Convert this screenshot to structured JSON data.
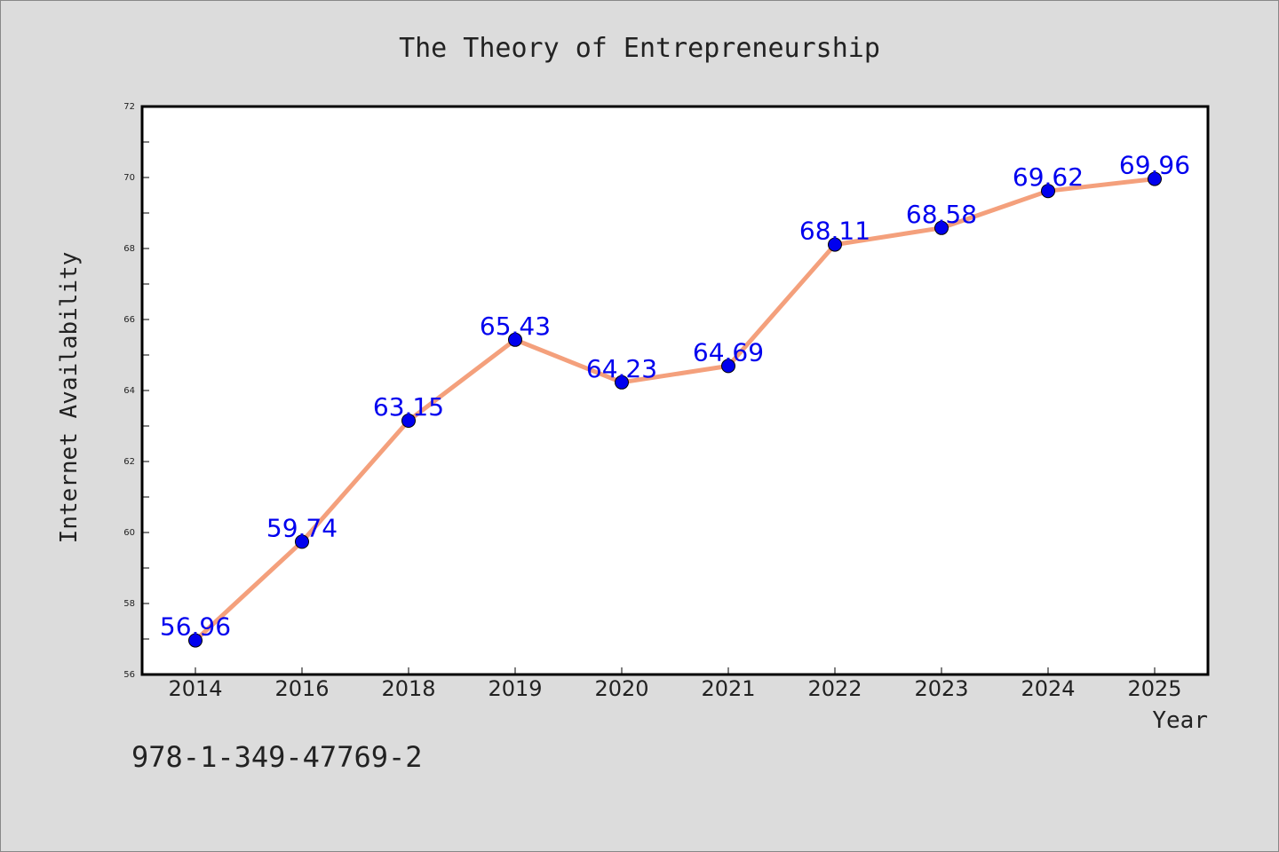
{
  "chart_data": {
    "type": "line",
    "title": "The Theory of Entrepreneurship",
    "xlabel": "Year",
    "ylabel": "Internet Availability",
    "categories": [
      "2014",
      "2016",
      "2018",
      "2019",
      "2020",
      "2021",
      "2022",
      "2023",
      "2024",
      "2025"
    ],
    "series": [
      {
        "values": [
          56.96,
          59.74,
          63.15,
          65.43,
          64.23,
          64.69,
          68.11,
          68.58,
          69.62,
          69.96
        ],
        "data_labels": [
          "56.96",
          "59.74",
          "63.15",
          "65.43",
          "64.23",
          "64.69",
          "68.11",
          "68.58",
          "69.62",
          "69.96"
        ],
        "line_color": "#f4a07c",
        "marker_color": "#0000ee"
      }
    ],
    "ylim": [
      56,
      72
    ],
    "yticks": [
      56,
      58,
      60,
      62,
      64,
      66,
      68,
      70,
      72
    ],
    "ytick_labels": [
      "56",
      "58",
      "60",
      "62",
      "64",
      "66",
      "68",
      "70",
      "72"
    ],
    "grid": false,
    "annotation": "978-1-349-47769-2",
    "colors": {
      "background": "#dcdcdc",
      "plot_background": "#ffffff",
      "label_color": "#0000ee",
      "text": "#222222"
    }
  }
}
